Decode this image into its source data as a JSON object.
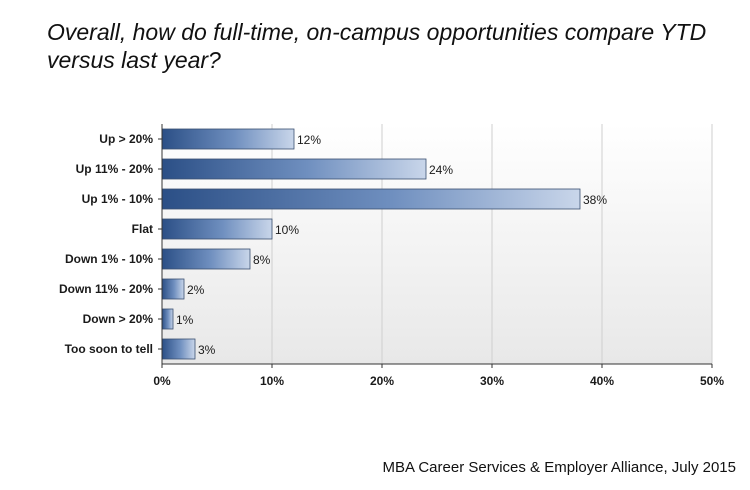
{
  "title": "Overall, how do full-time, on-campus opportunities compare YTD versus last year?",
  "footer": "MBA Career Services & Employer Alliance, July 2015",
  "colors": {
    "bar_dark": "#2b4f86",
    "bar_light": "#c6d3e8",
    "plot_bg_top": "#ffffff",
    "plot_bg_bottom": "#e9e9e9",
    "grid": "#cfcfcf",
    "axis": "#333333"
  },
  "chart_data": {
    "type": "bar",
    "orientation": "horizontal",
    "title": "Overall, how do full-time, on-campus opportunities compare YTD versus last year?",
    "xlabel": "",
    "ylabel": "",
    "xlim": [
      0,
      50
    ],
    "xticks": [
      0,
      10,
      20,
      30,
      40,
      50
    ],
    "xtick_labels": [
      "0%",
      "10%",
      "20%",
      "30%",
      "40%",
      "50%"
    ],
    "grid": true,
    "categories": [
      "Up > 20%",
      "Up 11% - 20%",
      "Up 1% - 10%",
      "Flat",
      "Down 1% - 10%",
      "Down 11% - 20%",
      "Down > 20%",
      "Too soon to tell"
    ],
    "values": [
      12,
      24,
      38,
      10,
      8,
      2,
      1,
      3
    ],
    "data_labels": [
      "12%",
      "24%",
      "38%",
      "10%",
      "8%",
      "2%",
      "1%",
      "3%"
    ]
  }
}
